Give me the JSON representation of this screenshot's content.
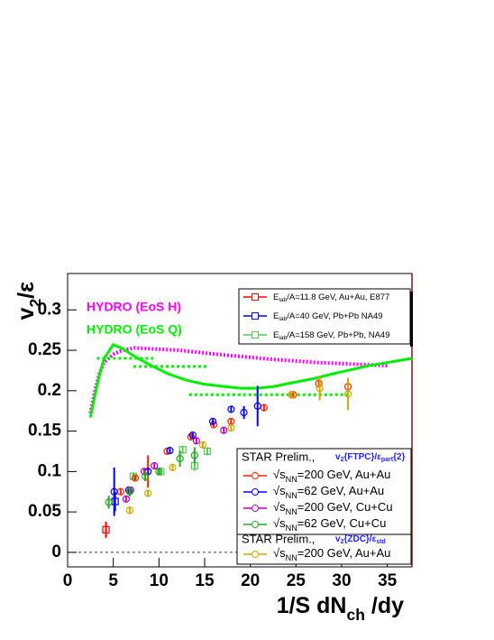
{
  "chart_data": {
    "type": "scatter",
    "xlabel": [
      {
        "text": "1/S dN"
      },
      {
        "text": "ch",
        "sub": true
      },
      {
        "text": " /dy"
      }
    ],
    "ylabel": [
      {
        "text": "v"
      },
      {
        "text": "2",
        "sub": true
      },
      {
        "text": "/ε"
      }
    ],
    "xlim": [
      0,
      37.7
    ],
    "ylim": [
      -0.018,
      0.345
    ],
    "xticks": [
      0,
      5,
      10,
      15,
      20,
      25,
      30,
      35
    ],
    "yticks": [
      0,
      0.05,
      0.1,
      0.15,
      0.2,
      0.25,
      0.3
    ],
    "legend_headers": [
      {
        "text": "STAR Prelim.,",
        "formula": [
          {
            "text": "v"
          },
          {
            "text": "2",
            "sub": true
          },
          {
            "text": "{FTPC}/ε"
          },
          {
            "text": "part",
            "sub": true
          },
          {
            "text": "{2}"
          }
        ]
      },
      {
        "text": "STAR Prelim.,",
        "formula": [
          {
            "text": "v"
          },
          {
            "text": "2",
            "sub": true
          },
          {
            "text": "{ZDC}/ε"
          },
          {
            "text": "std",
            "sub": true
          }
        ]
      }
    ],
    "series": [
      {
        "name": "HYDRO (EoS H)",
        "style": "dotted-line",
        "color": "#ff00ff",
        "x": [
          2.5,
          3,
          3.5,
          4,
          5,
          6,
          7.4,
          9,
          12.3,
          17.3,
          22.2,
          27.1,
          31,
          35
        ],
        "values": [
          0.172,
          0.2,
          0.222,
          0.235,
          0.245,
          0.25,
          0.253,
          0.252,
          0.25,
          0.244,
          0.239,
          0.235,
          0.233,
          0.231
        ]
      },
      {
        "name": "HYDRO (EoS Q)",
        "style": "solid-line",
        "color": "#00ee00",
        "x": [
          2.5,
          3,
          3.5,
          4,
          5,
          6,
          7.4,
          9,
          11,
          13,
          15,
          17.3,
          19,
          20.7,
          22.5,
          24.2,
          27,
          29.1,
          33,
          37.7
        ],
        "values": [
          0.167,
          0.195,
          0.22,
          0.24,
          0.257,
          0.252,
          0.242,
          0.232,
          0.221,
          0.213,
          0.208,
          0.205,
          0.203,
          0.203,
          0.205,
          0.209,
          0.215,
          0.221,
          0.231,
          0.24
        ]
      },
      {
        "style": "dotted-segments",
        "color": "#00ee00",
        "x_start": [
          3.2,
          7.2,
          13.3
        ],
        "x_end": [
          9.4,
          15.5,
          30.9
        ],
        "values": [
          0.24,
          0.23,
          0.195
        ]
      },
      {
        "name": [
          {
            "text": "E"
          },
          {
            "text": "lab",
            "sub": true
          },
          {
            "text": "/A=11.8 GeV, Au+Au, E877"
          }
        ],
        "style": "square",
        "color": "#ff0000",
        "x": [
          4.2
        ],
        "values": [
          0.028
        ],
        "errors": [
          0.01
        ]
      },
      {
        "name": [
          {
            "text": "E"
          },
          {
            "text": "lab",
            "sub": true
          },
          {
            "text": "/A=40 GeV, Pb+Pb NA49"
          }
        ],
        "style": "square",
        "color": "#0000ff",
        "x": [
          5.2
        ],
        "values": [
          0.063
        ],
        "errors": [
          0.012
        ]
      },
      {
        "name": [
          {
            "text": "E"
          },
          {
            "text": "lab",
            "sub": true
          },
          {
            "text": "/A=158 GeV, Pb+Pb, NA49"
          }
        ],
        "style": "square",
        "color": "#55cc55",
        "x": [
          7.2,
          10.2,
          12.6,
          13.9,
          15.3
        ],
        "values": [
          0.094,
          0.1,
          0.127,
          0.107,
          0.125
        ],
        "errors": [
          0.005,
          0.005,
          0.005,
          0.006,
          0.005
        ]
      },
      {
        "name": [
          {
            "text": "√s"
          },
          {
            "text": "NN",
            "sub": true
          },
          {
            "text": "=200 GeV, Au+Au"
          }
        ],
        "style": "circle",
        "color": "#ff2200",
        "x": [
          5.8,
          7.4,
          8.8,
          10.9,
          13.5,
          16,
          17.9,
          21.5,
          24.7,
          27.5,
          30.7
        ],
        "values": [
          0.075,
          0.092,
          0.1,
          0.125,
          0.143,
          0.158,
          0.162,
          0.179,
          0.195,
          0.209,
          0.205
        ],
        "errors": [
          0.003,
          0.003,
          0.02,
          0.003,
          0.003,
          0.003,
          0.004,
          0.004,
          0.004,
          0.005,
          0.006
        ]
      },
      {
        "name": [
          {
            "text": "√s"
          },
          {
            "text": "NN",
            "sub": true
          },
          {
            "text": "=62 GeV, Au+Au"
          }
        ],
        "style": "circle",
        "color": "#0000ff",
        "x": [
          5.1,
          6.7,
          8.8,
          11.2,
          13.7,
          15.9,
          17.9,
          19.3,
          20.8
        ],
        "values": [
          0.075,
          0.077,
          0.1,
          0.126,
          0.145,
          0.162,
          0.177,
          0.173,
          0.181
        ],
        "errors": [
          0.03,
          0.004,
          0.004,
          0.003,
          0.003,
          0.003,
          0.004,
          0.008,
          0.025
        ]
      },
      {
        "name": [
          {
            "text": "√s"
          },
          {
            "text": "NN",
            "sub": true
          },
          {
            "text": "=200 GeV, Cu+Cu"
          }
        ],
        "style": "circle",
        "color": "#bb00bb",
        "x": [
          6.4,
          6.9,
          8.4,
          9.5,
          14.1,
          17.1
        ],
        "values": [
          0.066,
          0.077,
          0.1,
          0.107,
          0.138,
          0.151
        ],
        "errors": [
          0.004,
          0.004,
          0.004,
          0.004,
          0.004,
          0.004
        ]
      },
      {
        "name": [
          {
            "text": "√s"
          },
          {
            "text": "NN",
            "sub": true
          },
          {
            "text": "=62 GeV, Cu+Cu"
          }
        ],
        "style": "circle",
        "color": "#22aa22",
        "x": [
          4.5,
          6.8,
          8.5,
          10,
          12.3,
          13.9
        ],
        "values": [
          0.062,
          0.075,
          0.094,
          0.1,
          0.116,
          0.12
        ],
        "errors": [
          0.008,
          0.006,
          0.006,
          0.005,
          0.01,
          0.01
        ]
      },
      {
        "name": [
          {
            "text": "√s"
          },
          {
            "text": "NN",
            "sub": true
          },
          {
            "text": "=200 GeV, Au+Au"
          }
        ],
        "style": "circle",
        "color": "#ccaa00",
        "x": [
          6.8,
          8.8,
          11.5,
          14.8,
          17.9,
          24.5,
          27.6,
          30.7
        ],
        "values": [
          0.052,
          0.073,
          0.105,
          0.133,
          0.154,
          0.195,
          0.203,
          0.196
        ],
        "errors": [
          0.004,
          0.004,
          0.004,
          0.004,
          0.004,
          0.005,
          0.015,
          0.02
        ]
      }
    ]
  }
}
